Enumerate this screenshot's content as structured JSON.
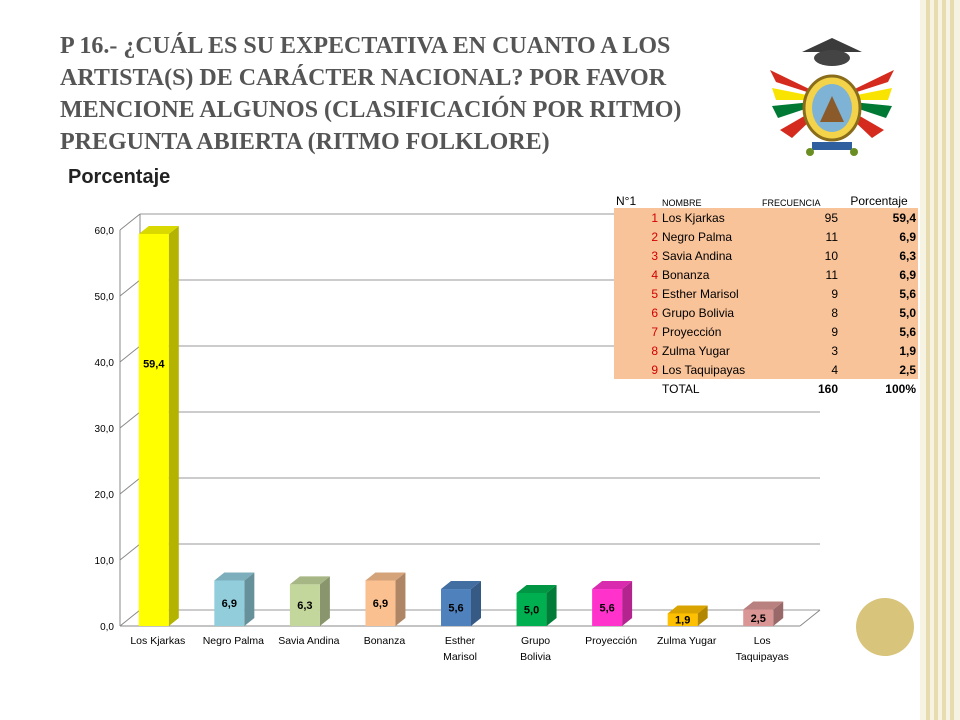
{
  "slide": {
    "title": "P 16.- ¿CUÁL ES SU EXPECTATIVA EN CUANTO A LOS ARTISTA(S) DE CARÁCTER NACIONAL? POR FAVOR MENCIONE ALGUNOS (CLASIFICACIÓN POR RITMO) PREGUNTA ABIERTA (RITMO FOLKLORE)",
    "chart_heading": "Porcentaje",
    "emblem_icon": "bolivia-coat-of-arms-icon"
  },
  "table": {
    "headers": [
      "N°1",
      "NOMBRE",
      "FRECUENCIA",
      "Porcentaje"
    ],
    "rows": [
      {
        "num": "1",
        "name": "Los Kjarkas",
        "freq": "95",
        "pct": "59,4"
      },
      {
        "num": "2",
        "name": "Negro Palma",
        "freq": "11",
        "pct": "6,9"
      },
      {
        "num": "3",
        "name": "Savia Andina",
        "freq": "10",
        "pct": "6,3"
      },
      {
        "num": "4",
        "name": "Bonanza",
        "freq": "11",
        "pct": "6,9"
      },
      {
        "num": "5",
        "name": "Esther Marisol",
        "freq": "9",
        "pct": "5,6"
      },
      {
        "num": "6",
        "name": "Grupo Bolivia",
        "freq": "8",
        "pct": "5,0"
      },
      {
        "num": "7",
        "name": "Proyección",
        "freq": "9",
        "pct": "5,6"
      },
      {
        "num": "8",
        "name": "Zulma Yugar",
        "freq": "3",
        "pct": "1,9"
      },
      {
        "num": "9",
        "name": "Los Taquipayas",
        "freq": "4",
        "pct": "2,5"
      }
    ],
    "total_label": "TOTAL",
    "total_freq": "160",
    "total_pct": "100%"
  },
  "chart_data": {
    "type": "bar",
    "title": "Porcentaje",
    "categories": [
      "Los Kjarkas",
      "Negro Palma",
      "Savia Andina",
      "Bonanza",
      "Esther Marisol",
      "Grupo Bolivia",
      "Proyección",
      "Zulma Yugar",
      "Los Taquipayas"
    ],
    "values": [
      59.4,
      6.9,
      6.3,
      6.9,
      5.6,
      5.0,
      5.6,
      1.9,
      2.5
    ],
    "value_labels": [
      "59,4",
      "6,9",
      "6,3",
      "6,9",
      "5,6",
      "5,0",
      "5,6",
      "1,9",
      "2,5"
    ],
    "ylim": [
      0,
      60
    ],
    "yticks": [
      "0,0",
      "10,0",
      "20,0",
      "30,0",
      "40,0",
      "50,0",
      "60,0"
    ],
    "xlabel": "",
    "ylabel": "",
    "grid": true,
    "legend": "none",
    "colors": [
      "#ffff00",
      "#92cddc",
      "#c3d69b",
      "#fac090",
      "#4f81bd",
      "#00b050",
      "#ff33cc",
      "#ffc000",
      "#d99694"
    ]
  }
}
